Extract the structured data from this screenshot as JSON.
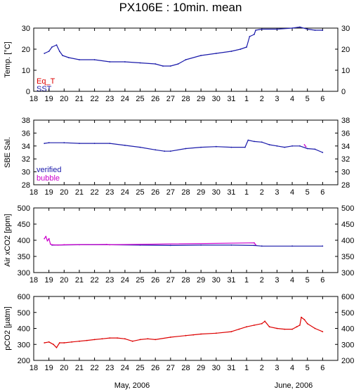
{
  "title": "PX106E : 10min. mean",
  "month_labels": [
    "May, 2006",
    "June, 2006"
  ],
  "x_tick_labels": [
    "18",
    "19",
    "20",
    "21",
    "22",
    "23",
    "24",
    "25",
    "26",
    "27",
    "28",
    "29",
    "30",
    "31",
    "1",
    "2",
    "3",
    "4",
    "5",
    "6"
  ],
  "colors": {
    "red": "#dd0000",
    "blue": "#1a1aaa",
    "magenta": "#cc00cc",
    "axis": "#000000"
  },
  "chart_data": [
    {
      "type": "line",
      "ylabel": "Temp. [°C]",
      "ylim": [
        0,
        30
      ],
      "yticks": [
        "0",
        "10",
        "20",
        "30"
      ],
      "legend_placement": "bottom-left",
      "series": [
        {
          "name": "Eq_T",
          "color": "#dd0000",
          "points": []
        },
        {
          "name": "SST",
          "color": "#1a1aaa",
          "points": [
            [
              18.7,
              18
            ],
            [
              19.0,
              19
            ],
            [
              19.2,
              21
            ],
            [
              19.5,
              22
            ],
            [
              19.7,
              19
            ],
            [
              19.9,
              17
            ],
            [
              20.3,
              16
            ],
            [
              21.0,
              15
            ],
            [
              22.0,
              15
            ],
            [
              23.0,
              14
            ],
            [
              24.0,
              14
            ],
            [
              25.0,
              13.5
            ],
            [
              26.0,
              13
            ],
            [
              26.5,
              12
            ],
            [
              27.0,
              12
            ],
            [
              27.5,
              13
            ],
            [
              28.0,
              15
            ],
            [
              29.0,
              17
            ],
            [
              30.0,
              18
            ],
            [
              31.0,
              19
            ],
            [
              31.6,
              20
            ],
            [
              32.0,
              21
            ],
            [
              32.2,
              26
            ],
            [
              32.5,
              27
            ],
            [
              32.6,
              29
            ],
            [
              33.0,
              29.5
            ],
            [
              34.0,
              29.5
            ],
            [
              35.0,
              30
            ],
            [
              35.5,
              30.5
            ],
            [
              36.0,
              29.5
            ],
            [
              36.5,
              29
            ],
            [
              37.0,
              29
            ]
          ]
        }
      ]
    },
    {
      "type": "line",
      "ylabel": "SBE Sal.",
      "ylim": [
        28,
        38
      ],
      "yticks": [
        "28",
        "30",
        "32",
        "34",
        "36",
        "38"
      ],
      "legend_placement": "bottom-left",
      "series": [
        {
          "name": "verified",
          "color": "#1a1aaa",
          "points": [
            [
              18.7,
              34.4
            ],
            [
              19.0,
              34.5
            ],
            [
              20.0,
              34.5
            ],
            [
              21.0,
              34.4
            ],
            [
              22.0,
              34.4
            ],
            [
              23.0,
              34.4
            ],
            [
              24.0,
              34.1
            ],
            [
              25.0,
              33.8
            ],
            [
              26.0,
              33.4
            ],
            [
              26.6,
              33.2
            ],
            [
              27.0,
              33.2
            ],
            [
              28.0,
              33.6
            ],
            [
              29.0,
              33.8
            ],
            [
              30.0,
              33.9
            ],
            [
              31.0,
              33.8
            ],
            [
              31.9,
              33.8
            ],
            [
              32.1,
              34.9
            ],
            [
              32.5,
              34.7
            ],
            [
              33.0,
              34.6
            ],
            [
              33.5,
              34.2
            ],
            [
              34.0,
              34.0
            ],
            [
              34.5,
              33.8
            ],
            [
              35.0,
              34.0
            ],
            [
              35.5,
              34.0
            ],
            [
              36.0,
              33.6
            ],
            [
              36.5,
              33.5
            ],
            [
              37.0,
              33.0
            ]
          ]
        },
        {
          "name": "bubble",
          "color": "#cc00cc",
          "points": [
            [
              35.8,
              34.2
            ],
            [
              35.9,
              33.9
            ]
          ]
        }
      ]
    },
    {
      "type": "line",
      "ylabel": "Air xCO2 [ppm]",
      "ylim": [
        300,
        500
      ],
      "yticks": [
        "300",
        "350",
        "400",
        "450",
        "500"
      ],
      "series": [
        {
          "name": "",
          "color": "#1a1aaa",
          "points": [
            [
              19.2,
              385
            ],
            [
              21.0,
              386
            ],
            [
              23.0,
              386
            ],
            [
              25.0,
              385
            ],
            [
              27.0,
              384
            ],
            [
              29.0,
              385
            ],
            [
              31.0,
              385
            ],
            [
              32.5,
              384
            ],
            [
              33.0,
              382
            ],
            [
              35.0,
              382
            ],
            [
              37.0,
              382
            ]
          ]
        },
        {
          "name": "",
          "color": "#cc00cc",
          "points": [
            [
              18.7,
              405
            ],
            [
              18.8,
              412
            ],
            [
              18.9,
              398
            ],
            [
              19.0,
              405
            ],
            [
              19.1,
              388
            ],
            [
              19.2,
              386
            ],
            [
              19.6,
              385
            ],
            [
              20.0,
              386
            ],
            [
              22.8,
              387
            ],
            [
              23.0,
              386
            ],
            [
              32.5,
              392
            ],
            [
              32.6,
              386
            ]
          ]
        }
      ]
    },
    {
      "type": "line",
      "ylabel": "pCO2 [μatm]",
      "ylim": [
        200,
        600
      ],
      "yticks": [
        "200",
        "300",
        "400",
        "500",
        "600"
      ],
      "series": [
        {
          "name": "",
          "color": "#dd0000",
          "points": [
            [
              18.7,
              310
            ],
            [
              19.0,
              315
            ],
            [
              19.3,
              300
            ],
            [
              19.5,
              280
            ],
            [
              19.7,
              310
            ],
            [
              20.0,
              310
            ],
            [
              20.5,
              315
            ],
            [
              21.0,
              320
            ],
            [
              21.5,
              325
            ],
            [
              22.0,
              330
            ],
            [
              22.5,
              335
            ],
            [
              23.0,
              340
            ],
            [
              23.5,
              340
            ],
            [
              24.0,
              335
            ],
            [
              24.5,
              320
            ],
            [
              25.0,
              330
            ],
            [
              25.5,
              335
            ],
            [
              26.0,
              330
            ],
            [
              27.0,
              345
            ],
            [
              28.0,
              355
            ],
            [
              28.5,
              360
            ],
            [
              29.0,
              365
            ],
            [
              30.0,
              370
            ],
            [
              31.0,
              380
            ],
            [
              31.5,
              395
            ],
            [
              32.0,
              410
            ],
            [
              32.5,
              420
            ],
            [
              33.0,
              430
            ],
            [
              33.2,
              445
            ],
            [
              33.5,
              410
            ],
            [
              34.0,
              400
            ],
            [
              34.5,
              395
            ],
            [
              35.0,
              395
            ],
            [
              35.3,
              410
            ],
            [
              35.5,
              420
            ],
            [
              35.6,
              470
            ],
            [
              35.8,
              455
            ],
            [
              36.0,
              430
            ],
            [
              36.5,
              400
            ],
            [
              37.0,
              380
            ]
          ]
        }
      ]
    }
  ]
}
